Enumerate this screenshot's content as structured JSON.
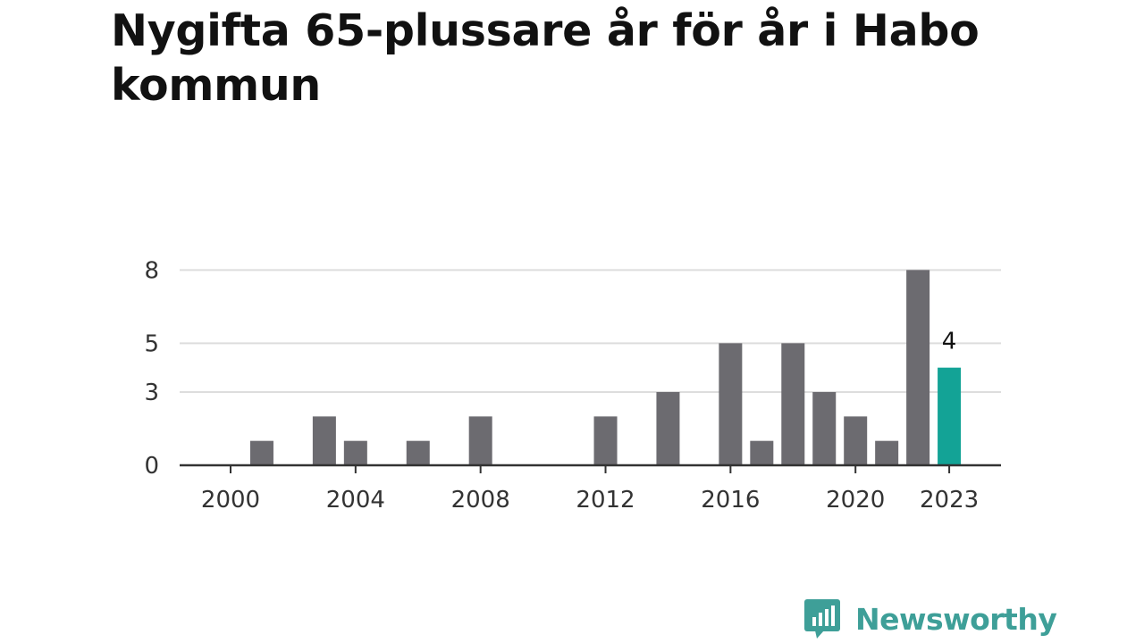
{
  "title": "Nygifta 65-plussare år för år i Habo kommun",
  "logo": {
    "text": "Newsworthy",
    "icon": "bar-chart-speech-bubble-icon",
    "color": "#3e9f98"
  },
  "colors": {
    "bar": "#6c6b70",
    "highlight": "#13a396",
    "grid": "#dddddd",
    "axis": "#333333"
  },
  "chart_data": {
    "type": "bar",
    "title": "Nygifta 65-plussare år för år i Habo kommun",
    "xlabel": "",
    "ylabel": "",
    "x": [
      2000,
      2001,
      2002,
      2003,
      2004,
      2005,
      2006,
      2007,
      2008,
      2009,
      2010,
      2011,
      2012,
      2013,
      2014,
      2015,
      2016,
      2017,
      2018,
      2019,
      2020,
      2021,
      2022,
      2023
    ],
    "values": [
      0,
      1,
      0,
      2,
      1,
      0,
      1,
      0,
      2,
      0,
      0,
      0,
      2,
      0,
      3,
      0,
      5,
      1,
      5,
      3,
      2,
      1,
      8,
      4
    ],
    "xticks": [
      "2000",
      "2004",
      "2008",
      "2012",
      "2016",
      "2020",
      "2023"
    ],
    "yticks": [
      "0",
      "3",
      "5",
      "8"
    ],
    "highlight": {
      "x": 2023,
      "label": "4"
    },
    "grid": true
  }
}
